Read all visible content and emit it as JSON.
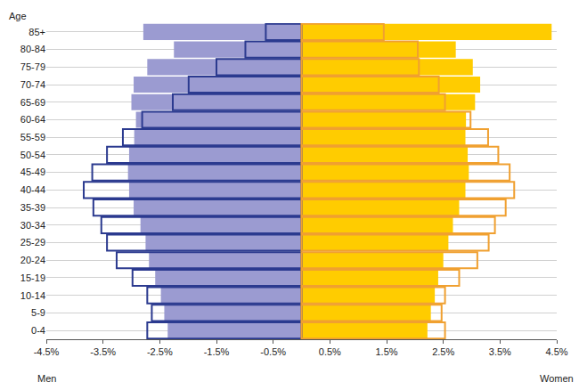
{
  "chart_data": {
    "type": "bar",
    "orientation": "horizontal",
    "ylabel": "Age",
    "xlabel_left": "Men",
    "xlabel_right": "Women",
    "categories": [
      "0-4",
      "5-9",
      "10-14",
      "15-19",
      "20-24",
      "25-29",
      "30-34",
      "35-39",
      "40-44",
      "45-49",
      "50-54",
      "55-59",
      "60-64",
      "65-69",
      "70-74",
      "75-79",
      "80-84",
      "85+"
    ],
    "series": [
      {
        "color": "#9b9bd1",
        "marker": "filled",
        "values": [
          -2.36,
          -2.42,
          -2.48,
          -2.58,
          -2.69,
          -2.75,
          -2.84,
          -2.96,
          -3.04,
          -3.06,
          -3.04,
          -2.95,
          -2.92,
          -3.0,
          -2.96,
          -2.72,
          -2.25,
          -2.79
        ]
      },
      {
        "color": "#ffcc00",
        "marker": "filled",
        "values": [
          2.22,
          2.28,
          2.35,
          2.41,
          2.5,
          2.59,
          2.67,
          2.78,
          2.89,
          2.95,
          2.93,
          2.89,
          2.9,
          3.06,
          3.15,
          3.02,
          2.72,
          4.41
        ]
      },
      {
        "color": "#2b3a8f",
        "marker": "outline",
        "values": [
          -2.72,
          -2.64,
          -2.72,
          -2.98,
          -3.26,
          -3.43,
          -3.53,
          -3.67,
          -3.84,
          -3.69,
          -3.43,
          -3.15,
          -2.81,
          -2.27,
          -1.99,
          -1.5,
          -0.99,
          -0.63
        ]
      },
      {
        "color": "#f0a030",
        "marker": "outline",
        "values": [
          2.53,
          2.47,
          2.53,
          2.78,
          3.1,
          3.3,
          3.41,
          3.6,
          3.75,
          3.67,
          3.47,
          3.29,
          2.98,
          2.53,
          2.42,
          2.07,
          2.05,
          1.45
        ]
      }
    ],
    "xlim": [
      -4.5,
      4.5
    ],
    "xticks": [
      {
        "value": -4.5,
        "label": "-4.5%"
      },
      {
        "value": -3.5,
        "label": "-3.5%"
      },
      {
        "value": -2.5,
        "label": "-2.5%"
      },
      {
        "value": -1.5,
        "label": "-1.5%"
      },
      {
        "value": -0.5,
        "label": "-0.5%"
      },
      {
        "value": 0.5,
        "label": "0.5%"
      },
      {
        "value": 1.5,
        "label": "1.5%"
      },
      {
        "value": 2.5,
        "label": "2.5%"
      },
      {
        "value": 3.5,
        "label": "3.5%"
      },
      {
        "value": 4.5,
        "label": "4.5%"
      }
    ],
    "grid": true
  }
}
